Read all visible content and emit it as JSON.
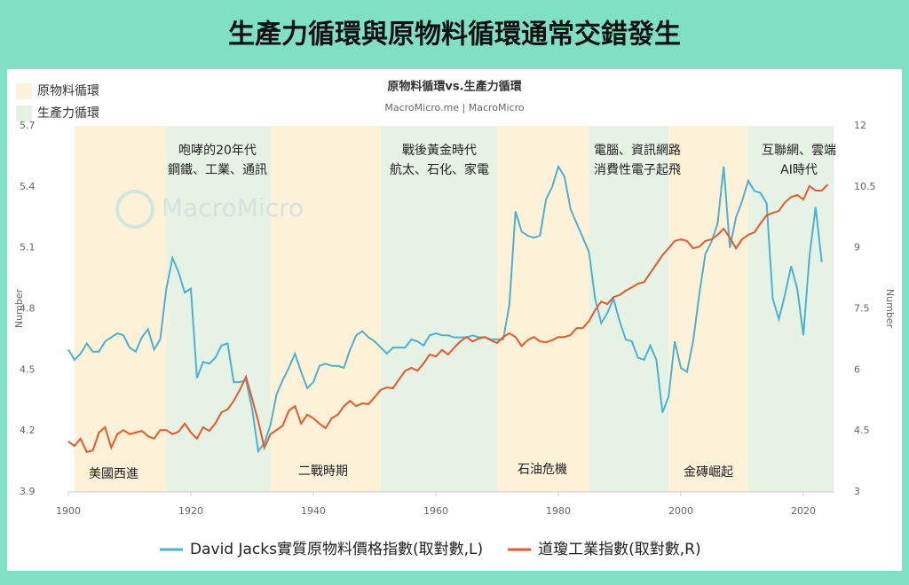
{
  "header": {
    "title": "生產力循環與原物料循環通常交錯發生"
  },
  "chart_data": {
    "type": "line",
    "title": "原物料循環vs.生產力循環",
    "subtitle": "MacroMicro.me | MacroMicro",
    "watermark": "MacroMicro",
    "y_label": "Number",
    "y2_label": "Number",
    "xlim": [
      1900,
      2025
    ],
    "xticks": [
      1900,
      1920,
      1940,
      1960,
      1980,
      2000,
      2020
    ],
    "ylim": [
      3.9,
      5.7
    ],
    "yticks": [
      3.9,
      4.2,
      4.5,
      4.8,
      5.1,
      5.4,
      5.7
    ],
    "y2lim": [
      3,
      12
    ],
    "y2ticks": [
      3,
      4.5,
      6,
      7.5,
      9,
      10.5,
      12
    ],
    "bands": [
      {
        "name": "原物料循環",
        "color": "#fdf1d8",
        "ranges": [
          [
            1901,
            1916
          ],
          [
            1933,
            1951
          ],
          [
            1970,
            1985
          ],
          [
            1998,
            2011
          ]
        ]
      },
      {
        "name": "生產力循環",
        "color": "#e6f2e4",
        "ranges": [
          [
            1916,
            1933
          ],
          [
            1951,
            1970
          ],
          [
            1985,
            1998
          ],
          [
            2011,
            2025
          ]
        ]
      }
    ],
    "annotations": [
      {
        "lines": [
          "咆哮的20年代",
          "鋼鐵、工業、通訊"
        ]
      },
      {
        "lines": [
          "戰後黃金時代",
          "航太、石化、家電"
        ]
      },
      {
        "lines": [
          "電腦、資訊網路",
          "消費性電子起飛"
        ]
      },
      {
        "lines": [
          "互聯網、雲端",
          "AI時代"
        ]
      },
      {
        "lines": [
          "美國西進"
        ]
      },
      {
        "lines": [
          "二戰時期"
        ]
      },
      {
        "lines": [
          "石油危機"
        ]
      },
      {
        "lines": [
          "金磚崛起"
        ]
      }
    ],
    "x": [
      1900,
      1901,
      1902,
      1903,
      1904,
      1905,
      1906,
      1907,
      1908,
      1909,
      1910,
      1911,
      1912,
      1913,
      1914,
      1915,
      1916,
      1917,
      1918,
      1919,
      1920,
      1921,
      1922,
      1923,
      1924,
      1925,
      1926,
      1927,
      1928,
      1929,
      1930,
      1931,
      1932,
      1933,
      1934,
      1935,
      1936,
      1937,
      1938,
      1939,
      1940,
      1941,
      1942,
      1943,
      1944,
      1945,
      1946,
      1947,
      1948,
      1949,
      1950,
      1951,
      1952,
      1953,
      1954,
      1955,
      1956,
      1957,
      1958,
      1959,
      1960,
      1961,
      1962,
      1963,
      1964,
      1965,
      1966,
      1967,
      1968,
      1969,
      1970,
      1971,
      1972,
      1973,
      1974,
      1975,
      1976,
      1977,
      1978,
      1979,
      1980,
      1981,
      1982,
      1983,
      1984,
      1985,
      1986,
      1987,
      1988,
      1989,
      1990,
      1991,
      1992,
      1993,
      1994,
      1995,
      1996,
      1997,
      1998,
      1999,
      2000,
      2001,
      2002,
      2003,
      2004,
      2005,
      2006,
      2007,
      2008,
      2009,
      2010,
      2011,
      2012,
      2013,
      2014,
      2015,
      2016,
      2017,
      2018,
      2019,
      2020,
      2021,
      2022,
      2023,
      2024
    ],
    "series": [
      {
        "name": "David Jacks實質原物料價格指數(取對數,L)",
        "color": "#4cb1d3",
        "values": [
          4.6,
          4.55,
          4.58,
          4.63,
          4.59,
          4.59,
          4.64,
          4.66,
          4.68,
          4.67,
          4.61,
          4.59,
          4.66,
          4.7,
          4.6,
          4.65,
          4.9,
          5.05,
          4.98,
          4.88,
          4.9,
          4.46,
          4.54,
          4.53,
          4.56,
          4.62,
          4.63,
          4.44,
          4.44,
          4.45,
          4.31,
          4.1,
          4.14,
          4.23,
          4.38,
          4.45,
          4.51,
          4.58,
          4.49,
          4.41,
          4.44,
          4.52,
          4.53,
          4.52,
          4.52,
          4.51,
          4.6,
          4.67,
          4.69,
          4.66,
          4.64,
          4.61,
          4.58,
          4.61,
          4.61,
          4.61,
          4.65,
          4.64,
          4.62,
          4.67,
          4.68,
          4.67,
          4.67,
          4.66,
          4.66,
          4.66,
          4.67,
          4.66,
          4.66,
          4.65,
          4.65,
          4.65,
          4.82,
          5.28,
          5.18,
          5.16,
          5.15,
          5.16,
          5.34,
          5.4,
          5.5,
          5.45,
          5.29,
          5.22,
          5.15,
          5.08,
          4.85,
          4.73,
          4.78,
          4.85,
          4.74,
          4.65,
          4.64,
          4.56,
          4.55,
          4.62,
          4.55,
          4.29,
          4.37,
          4.64,
          4.51,
          4.49,
          4.64,
          4.87,
          5.07,
          5.13,
          5.22,
          5.5,
          5.1,
          5.25,
          5.33,
          5.43,
          5.38,
          5.37,
          5.32,
          4.85,
          4.75,
          4.87,
          5.01,
          4.9,
          4.67,
          5.06,
          5.3,
          5.03,
          null
        ]
      },
      {
        "name": "道瓊工業指數(取對數,R)",
        "color": "#e8582e",
        "axis": "y2",
        "values": [
          4.24,
          4.13,
          4.31,
          3.98,
          4.02,
          4.46,
          4.59,
          4.09,
          4.42,
          4.52,
          4.42,
          4.46,
          4.5,
          4.37,
          4.31,
          4.52,
          4.52,
          4.42,
          4.48,
          4.68,
          4.46,
          4.31,
          4.59,
          4.5,
          4.68,
          4.96,
          5.03,
          5.24,
          5.51,
          5.83,
          5.29,
          4.74,
          4.09,
          4.42,
          4.52,
          4.63,
          5.0,
          5.11,
          4.68,
          4.9,
          4.81,
          4.68,
          4.57,
          4.81,
          4.9,
          5.11,
          5.24,
          5.11,
          5.18,
          5.16,
          5.33,
          5.51,
          5.57,
          5.55,
          5.77,
          5.98,
          6.05,
          5.98,
          6.16,
          6.38,
          6.33,
          6.49,
          6.38,
          6.55,
          6.7,
          6.81,
          6.7,
          6.77,
          6.81,
          6.73,
          6.66,
          6.81,
          6.9,
          6.81,
          6.59,
          6.73,
          6.81,
          6.7,
          6.68,
          6.73,
          6.81,
          6.81,
          6.86,
          7.03,
          7.03,
          7.2,
          7.47,
          7.68,
          7.62,
          7.79,
          7.84,
          7.95,
          8.03,
          8.12,
          8.16,
          8.38,
          8.6,
          8.82,
          8.99,
          9.17,
          9.21,
          9.17,
          8.99,
          9.03,
          9.17,
          9.21,
          9.32,
          9.47,
          9.25,
          8.99,
          9.21,
          9.32,
          9.38,
          9.6,
          9.8,
          9.86,
          9.91,
          10.12,
          10.25,
          10.3,
          10.19,
          10.52,
          10.41,
          10.41,
          10.56
        ]
      }
    ]
  }
}
